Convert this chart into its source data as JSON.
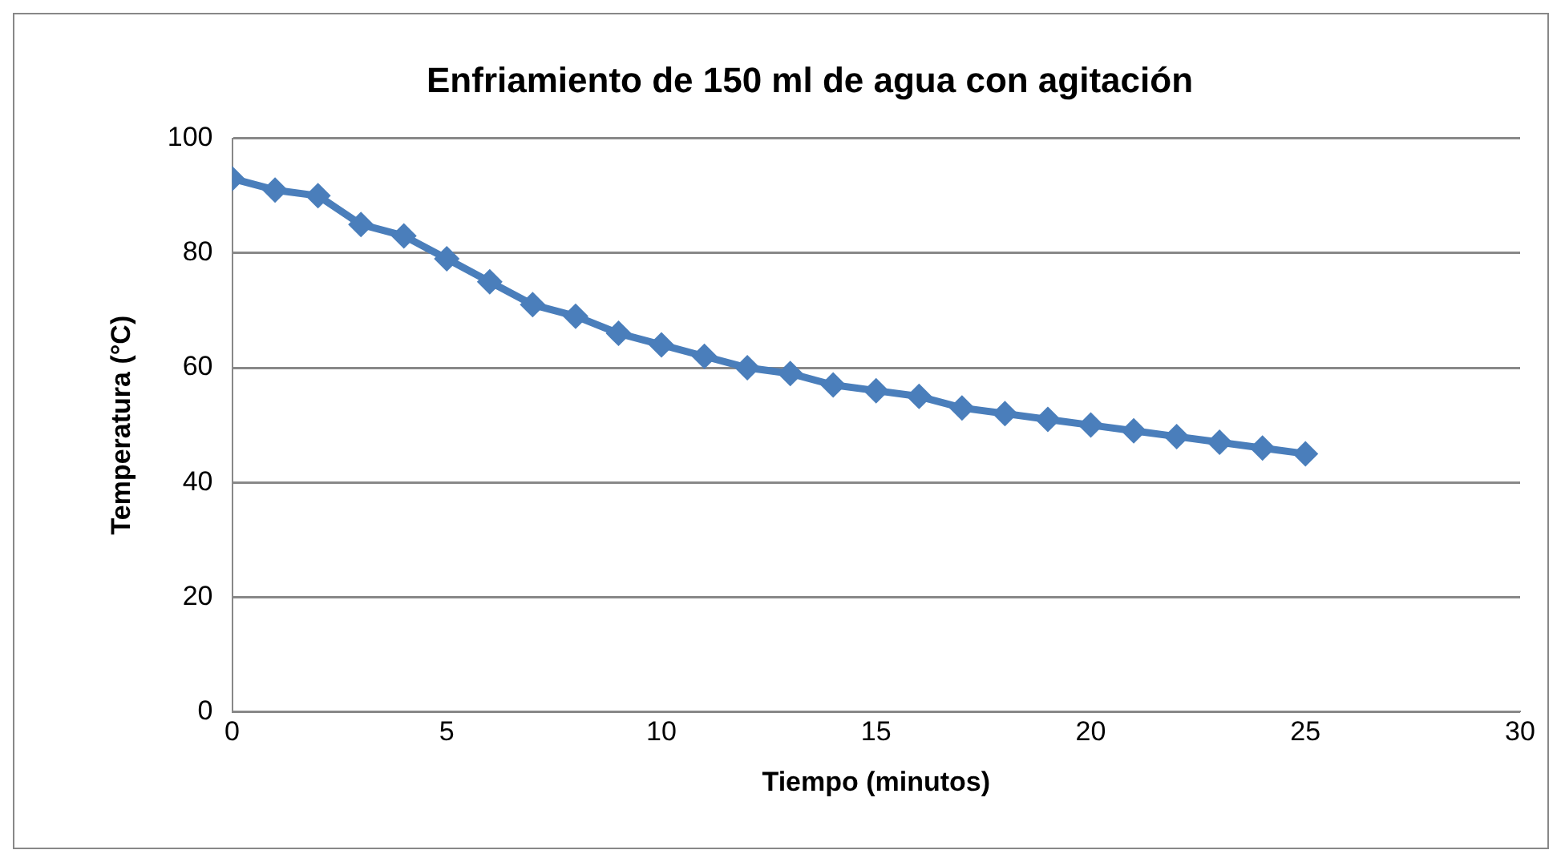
{
  "chart_data": {
    "type": "line",
    "title": "Enfriamiento de 150 ml de agua con agitación",
    "xlabel": "Tiempo (minutos)",
    "ylabel": "Temperatura (°C)",
    "x": [
      0,
      1,
      2,
      3,
      4,
      5,
      6,
      7,
      8,
      9,
      10,
      11,
      12,
      13,
      14,
      15,
      16,
      17,
      18,
      19,
      20,
      21,
      22,
      23,
      24,
      25
    ],
    "series": [
      {
        "color": "#4a7ebb",
        "values": [
          93,
          91,
          90,
          85,
          83,
          79,
          75,
          71,
          69,
          66,
          64,
          62,
          60,
          59,
          57,
          56,
          55,
          53,
          52,
          51,
          50,
          49,
          48,
          47,
          46,
          45
        ]
      }
    ],
    "xlim": [
      0,
      30
    ],
    "xticks": [
      0,
      5,
      10,
      15,
      20,
      25,
      30
    ],
    "ylim": [
      0,
      100
    ],
    "yticks": [
      0,
      20,
      40,
      60,
      80,
      100
    ],
    "grid": "y",
    "legend": false,
    "marker": "diamond",
    "line_style": "solid"
  }
}
